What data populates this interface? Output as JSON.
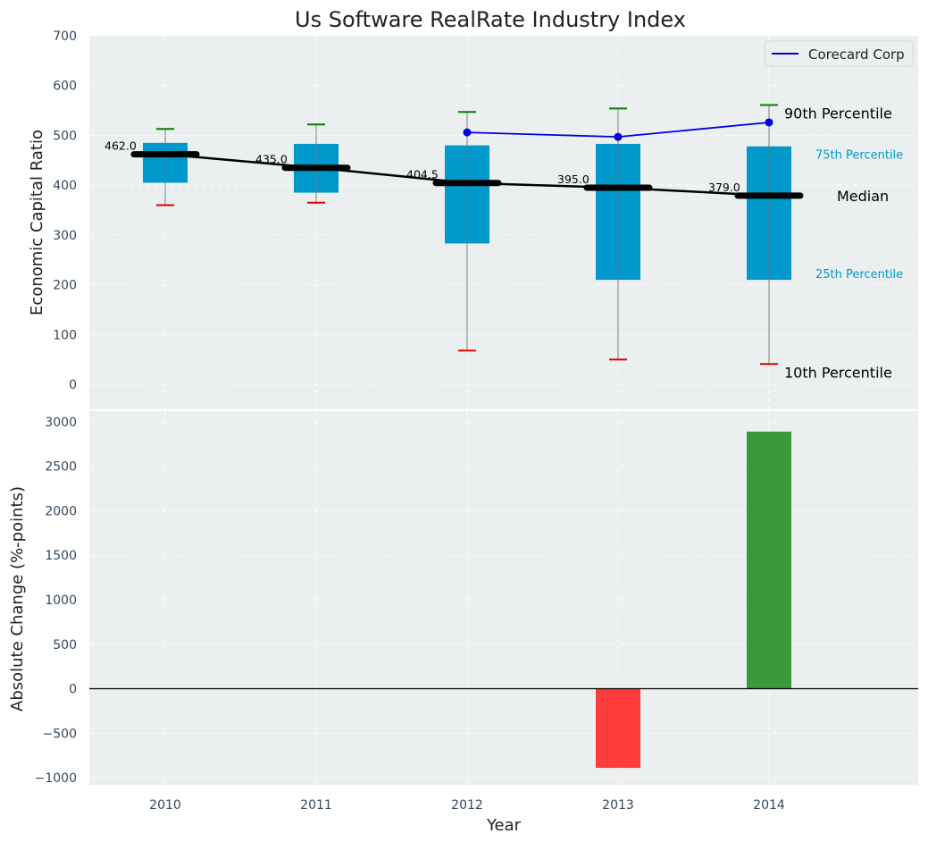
{
  "title": "Us Software RealRate Industry Index",
  "chart_data": [
    {
      "type": "box",
      "ylabel": "Economic Capital Ratio",
      "ylim": [
        -50,
        700
      ],
      "yticks": [
        0,
        100,
        200,
        300,
        400,
        500,
        600,
        700
      ],
      "grid": true,
      "categories": [
        "2010",
        "2011",
        "2012",
        "2013",
        "2014"
      ],
      "p10": [
        360,
        365,
        68,
        50,
        41
      ],
      "p25": [
        405,
        385,
        283,
        210,
        210
      ],
      "median": [
        462.0,
        435.0,
        404.5,
        395.0,
        379.0
      ],
      "p75": [
        485,
        483,
        480,
        483,
        478
      ],
      "p90": [
        513,
        522,
        547,
        554,
        561
      ],
      "median_labels": [
        "462.0",
        "435.0",
        "404.5",
        "395.0",
        "379.0"
      ],
      "series": [
        {
          "name": "Corecard Corp",
          "x": [
            "2012",
            "2013",
            "2014"
          ],
          "values": [
            506,
            497,
            526
          ],
          "color": "#0000dd"
        }
      ],
      "legend": {
        "position": "top-right",
        "entries": [
          "Corecard Corp"
        ]
      },
      "annotations": {
        "p90": "90th Percentile",
        "p75": "75th Percentile",
        "median": "Median",
        "p25": "25th Percentile",
        "p10": "10th Percentile"
      },
      "colors": {
        "box": "#0099cc",
        "median": "#000000",
        "p90_cap": "#008000",
        "p10_cap": "#dd0000",
        "whisker": "#808080"
      }
    },
    {
      "type": "bar",
      "xlabel": "Year",
      "ylabel": "Absolute Change (%-points)",
      "ylim": [
        -1080,
        3120
      ],
      "yticks": [
        -1000,
        -500,
        0,
        500,
        1000,
        1500,
        2000,
        2500,
        3000
      ],
      "ytick_labels": [
        "−1000",
        "−500",
        "0",
        "500",
        "1000",
        "1500",
        "2000",
        "2500",
        "3000"
      ],
      "grid": true,
      "categories": [
        "2010",
        "2011",
        "2012",
        "2013",
        "2014"
      ],
      "values": [
        0,
        0,
        0,
        -890,
        2890
      ],
      "colors": {
        "positive": "#3a9a3a",
        "negative": "#ff3b3b"
      }
    }
  ]
}
